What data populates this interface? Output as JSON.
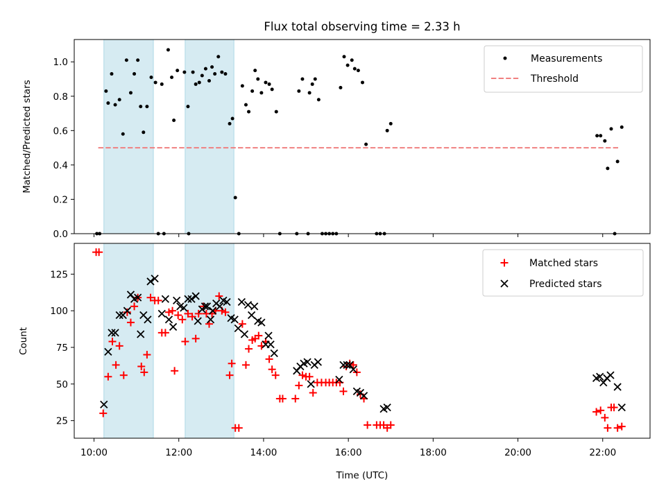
{
  "figure_title": "Flux total observing time = 2.33 h",
  "xlabel": "Time (UTC)",
  "colors": {
    "measurements": "#000000",
    "threshold": "#f08080",
    "shade": "#add8e6",
    "matched": "#ff0000",
    "predicted": "#000000"
  },
  "chart_data": [
    {
      "type": "scatter",
      "title": "Flux total observing time = 2.33 h",
      "xlabel": "",
      "ylabel": "Matched/Predicted stars",
      "xlim": [
        "09:32",
        "23:07"
      ],
      "ylim": [
        0,
        1.13
      ],
      "x_ticks": [
        "10:00",
        "12:00",
        "14:00",
        "16:00",
        "18:00",
        "20:00",
        "22:00"
      ],
      "y_ticks": [
        "0.0",
        "0.2",
        "0.4",
        "0.6",
        "0.8",
        "1.0"
      ],
      "legend_position": "top-right",
      "legend": [
        "Measurements",
        "Threshold"
      ],
      "shaded_intervals": [
        [
          "10:14",
          "11:24"
        ],
        [
          "12:09",
          "13:18"
        ]
      ],
      "threshold": {
        "name": "Threshold",
        "value": 0.5,
        "x": [
          "10:06",
          "22:24"
        ]
      },
      "series": [
        {
          "name": "Measurements",
          "points": [
            [
              "10:04",
              0.0
            ],
            [
              "10:08",
              0.0
            ],
            [
              "10:17",
              0.83
            ],
            [
              "10:20",
              0.76
            ],
            [
              "10:25",
              0.93
            ],
            [
              "10:30",
              0.75
            ],
            [
              "10:36",
              0.78
            ],
            [
              "10:41",
              0.58
            ],
            [
              "10:46",
              1.01
            ],
            [
              "10:52",
              0.82
            ],
            [
              "10:57",
              0.93
            ],
            [
              "11:02",
              1.01
            ],
            [
              "11:06",
              0.74
            ],
            [
              "11:10",
              0.59
            ],
            [
              "11:15",
              0.74
            ],
            [
              "11:21",
              0.91
            ],
            [
              "11:27",
              0.88
            ],
            [
              "11:31",
              0.0
            ],
            [
              "11:36",
              0.87
            ],
            [
              "11:39",
              0.0
            ],
            [
              "11:45",
              1.07
            ],
            [
              "11:50",
              0.91
            ],
            [
              "11:53",
              0.66
            ],
            [
              "11:58",
              0.95
            ],
            [
              "12:08",
              0.94
            ],
            [
              "12:13",
              0.74
            ],
            [
              "12:14",
              0.0
            ],
            [
              "12:20",
              0.94
            ],
            [
              "12:24",
              0.87
            ],
            [
              "12:29",
              0.88
            ],
            [
              "12:33",
              0.92
            ],
            [
              "12:38",
              0.96
            ],
            [
              "12:43",
              0.89
            ],
            [
              "12:47",
              0.97
            ],
            [
              "12:51",
              0.93
            ],
            [
              "12:56",
              1.03
            ],
            [
              "13:01",
              0.94
            ],
            [
              "13:06",
              0.93
            ],
            [
              "13:12",
              0.64
            ],
            [
              "13:16",
              0.67
            ],
            [
              "13:20",
              0.21
            ],
            [
              "13:25",
              0.0
            ],
            [
              "13:30",
              0.86
            ],
            [
              "13:35",
              0.75
            ],
            [
              "13:39",
              0.71
            ],
            [
              "13:44",
              0.83
            ],
            [
              "13:48",
              0.95
            ],
            [
              "13:52",
              0.9
            ],
            [
              "13:57",
              0.82
            ],
            [
              "14:03",
              0.88
            ],
            [
              "14:08",
              0.87
            ],
            [
              "14:12",
              0.84
            ],
            [
              "14:18",
              0.71
            ],
            [
              "14:23",
              0.0
            ],
            [
              "14:47",
              0.0
            ],
            [
              "14:50",
              0.83
            ],
            [
              "14:55",
              0.9
            ],
            [
              "15:03",
              0.0
            ],
            [
              "15:05",
              0.82
            ],
            [
              "15:09",
              0.87
            ],
            [
              "15:13",
              0.9
            ],
            [
              "15:18",
              0.78
            ],
            [
              "15:23",
              0.0
            ],
            [
              "15:28",
              0.0
            ],
            [
              "15:33",
              0.0
            ],
            [
              "15:38",
              0.0
            ],
            [
              "15:43",
              0.0
            ],
            [
              "15:49",
              0.85
            ],
            [
              "15:54",
              1.03
            ],
            [
              "15:59",
              0.98
            ],
            [
              "16:05",
              1.01
            ],
            [
              "16:09",
              0.96
            ],
            [
              "16:14",
              0.95
            ],
            [
              "16:20",
              0.88
            ],
            [
              "16:25",
              0.52
            ],
            [
              "16:40",
              0.0
            ],
            [
              "16:45",
              0.0
            ],
            [
              "16:51",
              0.0
            ],
            [
              "16:55",
              0.6
            ],
            [
              "17:00",
              0.64
            ],
            [
              "21:52",
              0.57
            ],
            [
              "21:57",
              0.57
            ],
            [
              "22:03",
              0.54
            ],
            [
              "22:07",
              0.38
            ],
            [
              "22:12",
              0.61
            ],
            [
              "22:17",
              0.0
            ],
            [
              "22:21",
              0.42
            ],
            [
              "22:27",
              0.62
            ]
          ]
        }
      ]
    },
    {
      "type": "scatter",
      "title": "",
      "xlabel": "Time (UTC)",
      "ylabel": "Count",
      "xlim": [
        "09:32",
        "23:07"
      ],
      "ylim": [
        13,
        146
      ],
      "x_ticks": [
        "10:00",
        "12:00",
        "14:00",
        "16:00",
        "18:00",
        "20:00",
        "22:00"
      ],
      "y_ticks": [
        "25",
        "50",
        "75",
        "100",
        "125"
      ],
      "legend_position": "top-right",
      "legend": [
        "Matched stars",
        "Predicted stars"
      ],
      "shaded_intervals": [
        [
          "10:14",
          "11:24"
        ],
        [
          "12:09",
          "13:18"
        ]
      ],
      "series": [
        {
          "name": "Matched stars",
          "marker": "plus",
          "points": [
            [
              "10:03",
              140
            ],
            [
              "10:07",
              140
            ],
            [
              "10:13",
              30
            ],
            [
              "10:20",
              55
            ],
            [
              "10:26",
              79
            ],
            [
              "10:31",
              63
            ],
            [
              "10:36",
              76
            ],
            [
              "10:42",
              56
            ],
            [
              "10:47",
              99
            ],
            [
              "10:52",
              92
            ],
            [
              "10:57",
              103
            ],
            [
              "11:02",
              109
            ],
            [
              "11:07",
              62
            ],
            [
              "11:11",
              58
            ],
            [
              "11:15",
              70
            ],
            [
              "11:20",
              109
            ],
            [
              "11:26",
              107
            ],
            [
              "11:31",
              107
            ],
            [
              "11:36",
              85
            ],
            [
              "11:41",
              85
            ],
            [
              "11:46",
              99
            ],
            [
              "11:51",
              100
            ],
            [
              "11:54",
              59
            ],
            [
              "11:59",
              97
            ],
            [
              "12:05",
              94
            ],
            [
              "12:09",
              79
            ],
            [
              "12:13",
              98
            ],
            [
              "12:19",
              96
            ],
            [
              "12:24",
              81
            ],
            [
              "12:28",
              98
            ],
            [
              "12:35",
              103
            ],
            [
              "12:39",
              98
            ],
            [
              "12:43",
              91
            ],
            [
              "12:47",
              98
            ],
            [
              "12:52",
              100
            ],
            [
              "12:57",
              110
            ],
            [
              "13:01",
              100
            ],
            [
              "13:06",
              99
            ],
            [
              "13:12",
              56
            ],
            [
              "13:15",
              64
            ],
            [
              "13:20",
              20
            ],
            [
              "13:25",
              20
            ],
            [
              "13:30",
              91
            ],
            [
              "13:35",
              63
            ],
            [
              "13:39",
              74
            ],
            [
              "13:44",
              80
            ],
            [
              "13:48",
              81
            ],
            [
              "13:53",
              83
            ],
            [
              "13:57",
              76
            ],
            [
              "14:03",
              79
            ],
            [
              "14:08",
              67
            ],
            [
              "14:12",
              60
            ],
            [
              "14:17",
              56
            ],
            [
              "14:23",
              40
            ],
            [
              "14:27",
              40
            ],
            [
              "14:45",
              40
            ],
            [
              "14:50",
              49
            ],
            [
              "14:55",
              56
            ],
            [
              "15:00",
              55
            ],
            [
              "15:05",
              55
            ],
            [
              "15:10",
              44
            ],
            [
              "15:16",
              51
            ],
            [
              "15:22",
              51
            ],
            [
              "15:28",
              51
            ],
            [
              "15:33",
              51
            ],
            [
              "15:38",
              51
            ],
            [
              "15:43",
              51
            ],
            [
              "15:48",
              51
            ],
            [
              "15:53",
              45
            ],
            [
              "15:57",
              62
            ],
            [
              "16:02",
              64
            ],
            [
              "16:07",
              63
            ],
            [
              "16:12",
              58
            ],
            [
              "16:17",
              43
            ],
            [
              "16:22",
              40
            ],
            [
              "16:27",
              22
            ],
            [
              "16:40",
              22
            ],
            [
              "16:45",
              22
            ],
            [
              "16:50",
              22
            ],
            [
              "16:55",
              20
            ],
            [
              "17:00",
              22
            ],
            [
              "21:51",
              31
            ],
            [
              "21:57",
              32
            ],
            [
              "22:03",
              27
            ],
            [
              "22:07",
              20
            ],
            [
              "22:12",
              34
            ],
            [
              "22:16",
              34
            ],
            [
              "22:21",
              20
            ],
            [
              "22:27",
              21
            ]
          ]
        },
        {
          "name": "Predicted stars",
          "marker": "x",
          "points": [
            [
              "10:14",
              36
            ],
            [
              "10:20",
              72
            ],
            [
              "10:25",
              85
            ],
            [
              "10:30",
              85
            ],
            [
              "10:36",
              97
            ],
            [
              "10:41",
              97
            ],
            [
              "10:47",
              100
            ],
            [
              "10:52",
              111
            ],
            [
              "10:57",
              108
            ],
            [
              "11:02",
              109
            ],
            [
              "11:06",
              84
            ],
            [
              "11:10",
              97
            ],
            [
              "11:16",
              94
            ],
            [
              "11:20",
              120
            ],
            [
              "11:26",
              122
            ],
            [
              "11:36",
              98
            ],
            [
              "11:41",
              108
            ],
            [
              "11:46",
              94
            ],
            [
              "11:52",
              89
            ],
            [
              "11:57",
              107
            ],
            [
              "12:02",
              103
            ],
            [
              "12:07",
              102
            ],
            [
              "12:13",
              108
            ],
            [
              "12:18",
              108
            ],
            [
              "12:24",
              110
            ],
            [
              "12:27",
              93
            ],
            [
              "12:33",
              101
            ],
            [
              "12:37",
              103
            ],
            [
              "12:40",
              103
            ],
            [
              "12:45",
              94
            ],
            [
              "12:48",
              100
            ],
            [
              "12:53",
              105
            ],
            [
              "12:58",
              103
            ],
            [
              "13:03",
              107
            ],
            [
              "13:08",
              106
            ],
            [
              "13:14",
              95
            ],
            [
              "13:19",
              94
            ],
            [
              "13:24",
              88
            ],
            [
              "13:29",
              106
            ],
            [
              "13:33",
              84
            ],
            [
              "13:38",
              104
            ],
            [
              "13:43",
              97
            ],
            [
              "13:47",
              103
            ],
            [
              "13:52",
              93
            ],
            [
              "13:57",
              92
            ],
            [
              "14:03",
              77
            ],
            [
              "14:07",
              83
            ],
            [
              "14:10",
              77
            ],
            [
              "14:15",
              71
            ],
            [
              "14:47",
              59
            ],
            [
              "14:52",
              62
            ],
            [
              "14:57",
              64
            ],
            [
              "15:02",
              65
            ],
            [
              "15:07",
              50
            ],
            [
              "15:12",
              63
            ],
            [
              "15:17",
              65
            ],
            [
              "15:47",
              53
            ],
            [
              "15:53",
              63
            ],
            [
              "15:58",
              63
            ],
            [
              "16:02",
              63
            ],
            [
              "16:07",
              60
            ],
            [
              "16:12",
              45
            ],
            [
              "16:17",
              44
            ],
            [
              "16:22",
              42
            ],
            [
              "16:50",
              33
            ],
            [
              "16:55",
              34
            ],
            [
              "21:51",
              54
            ],
            [
              "21:56",
              55
            ],
            [
              "22:01",
              51
            ],
            [
              "22:06",
              54
            ],
            [
              "22:11",
              56
            ],
            [
              "22:21",
              48
            ],
            [
              "22:27",
              34
            ]
          ]
        }
      ]
    }
  ]
}
